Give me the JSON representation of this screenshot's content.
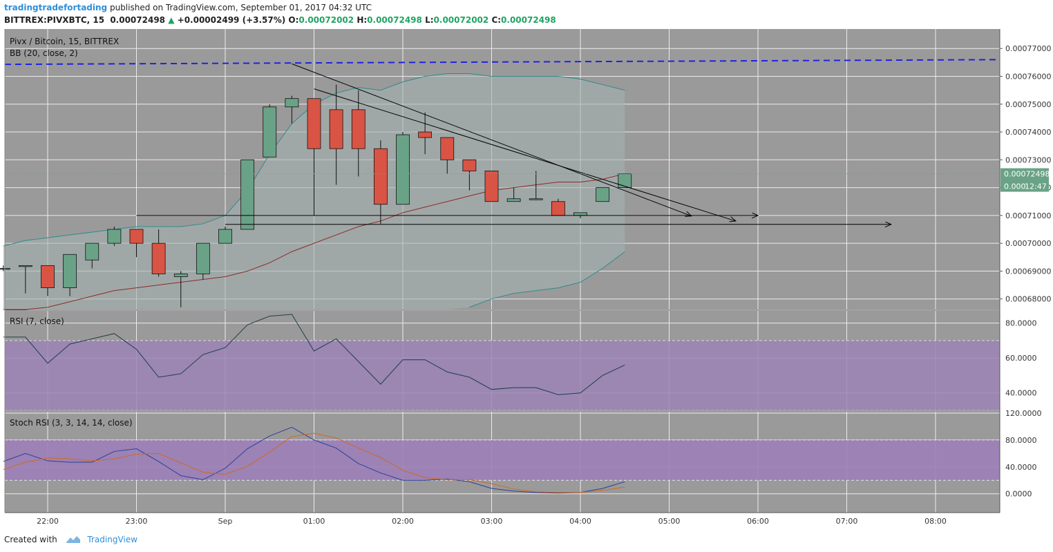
{
  "header": {
    "author": "tradingtradefortading",
    "published": "published on TradingView.com, September 01, 2017 04:32 UTC",
    "symbol": "BITTREX:PIVXBTC, 15",
    "last": "0.00072498",
    "change_arrow": "▲",
    "change": "+0.00002499 (+3.57%)",
    "o_label": "O:",
    "o": "0.00072002",
    "h_label": "H:",
    "h": "0.00072498",
    "l_label": "L:",
    "l": "0.00072002",
    "c_label": "C:",
    "c": "0.00072498"
  },
  "footer": {
    "created_with": "Created with",
    "brand": "TradingView"
  },
  "colors": {
    "bull": "#6aa287",
    "bear": "#d95444",
    "bg": "#9a9a9a",
    "rsi_band": "#9b84b5",
    "stoch_band": "#9c80b8",
    "blue_dash": "#1e22e0"
  },
  "chart_data": [
    {
      "type": "candlestick",
      "title": "Pivx / Bitcoin, 15, BITTREX",
      "indicator": "BB (20, close, 2)",
      "x_ticks": [
        "22:00",
        "23:00",
        "Sep",
        "01:00",
        "02:00",
        "03:00",
        "04:00",
        "05:00",
        "06:00",
        "07:00",
        "08:00"
      ],
      "y_ticks": [
        "0.00077000",
        "0.00076000",
        "0.00075000",
        "0.00074000",
        "0.00073000",
        "0.00072000",
        "0.00071000",
        "0.00070000",
        "0.00069000",
        "0.00068000"
      ],
      "ylim": [
        0.0006762,
        0.000777
      ],
      "price_label": "0.00072498",
      "price_partial": "0.000",
      "countdown": "12:47",
      "candles": [
        {
          "t": "21:30",
          "o": 0.000691,
          "h": 0.000692,
          "l": 0.00069,
          "c": 0.000691
        },
        {
          "t": "21:45",
          "o": 0.000692,
          "h": 0.000692,
          "l": 0.000682,
          "c": 0.000692
        },
        {
          "t": "22:00",
          "o": 0.000692,
          "h": 0.000692,
          "l": 0.000681,
          "c": 0.000684
        },
        {
          "t": "22:15",
          "o": 0.000684,
          "h": 0.000696,
          "l": 0.000681,
          "c": 0.000696
        },
        {
          "t": "22:30",
          "o": 0.000694,
          "h": 0.0007,
          "l": 0.000691,
          "c": 0.0007
        },
        {
          "t": "22:45",
          "o": 0.0007,
          "h": 0.000706,
          "l": 0.000699,
          "c": 0.000705
        },
        {
          "t": "23:00",
          "o": 0.000705,
          "h": 0.000705,
          "l": 0.000695,
          "c": 0.0007
        },
        {
          "t": "23:15",
          "o": 0.0007,
          "h": 0.000705,
          "l": 0.000688,
          "c": 0.000689
        },
        {
          "t": "23:30",
          "o": 0.000688,
          "h": 0.00069,
          "l": 0.000677,
          "c": 0.000689
        },
        {
          "t": "23:45",
          "o": 0.000689,
          "h": 0.0007,
          "l": 0.000687,
          "c": 0.0007
        },
        {
          "t": "00:00",
          "o": 0.0007,
          "h": 0.000706,
          "l": 0.0007,
          "c": 0.000705
        },
        {
          "t": "00:15",
          "o": 0.000705,
          "h": 0.00073,
          "l": 0.000705,
          "c": 0.00073
        },
        {
          "t": "00:30",
          "o": 0.000731,
          "h": 0.00075,
          "l": 0.000731,
          "c": 0.000749
        },
        {
          "t": "00:45",
          "o": 0.000749,
          "h": 0.000753,
          "l": 0.000743,
          "c": 0.000752
        },
        {
          "t": "01:00",
          "o": 0.000752,
          "h": 0.000752,
          "l": 0.00071,
          "c": 0.000734
        },
        {
          "t": "01:15",
          "o": 0.000748,
          "h": 0.000757,
          "l": 0.000721,
          "c": 0.000734
        },
        {
          "t": "01:30",
          "o": 0.000748,
          "h": 0.000755,
          "l": 0.000724,
          "c": 0.000734
        },
        {
          "t": "01:45",
          "o": 0.000734,
          "h": 0.000737,
          "l": 0.000707,
          "c": 0.000714
        },
        {
          "t": "02:00",
          "o": 0.000714,
          "h": 0.00074,
          "l": 0.000714,
          "c": 0.000739
        },
        {
          "t": "02:15",
          "o": 0.00074,
          "h": 0.000747,
          "l": 0.000732,
          "c": 0.000738
        },
        {
          "t": "02:30",
          "o": 0.000738,
          "h": 0.000738,
          "l": 0.000725,
          "c": 0.00073
        },
        {
          "t": "02:45",
          "o": 0.00073,
          "h": 0.00073,
          "l": 0.000719,
          "c": 0.000726
        },
        {
          "t": "03:00",
          "o": 0.000726,
          "h": 0.000726,
          "l": 0.000715,
          "c": 0.000715
        },
        {
          "t": "03:15",
          "o": 0.000715,
          "h": 0.00072,
          "l": 0.000715,
          "c": 0.000716
        },
        {
          "t": "03:30",
          "o": 0.000716,
          "h": 0.000726,
          "l": 0.000716,
          "c": 0.000716
        },
        {
          "t": "03:45",
          "o": 0.000715,
          "h": 0.000716,
          "l": 0.00071,
          "c": 0.00071
        },
        {
          "t": "04:00",
          "o": 0.00071,
          "h": 0.000711,
          "l": 0.000709,
          "c": 0.000711
        },
        {
          "t": "04:15",
          "o": 0.000715,
          "h": 0.00072,
          "l": 0.000715,
          "c": 0.00072
        },
        {
          "t": "04:30",
          "o": 0.00072,
          "h": 0.000725,
          "l": 0.00072,
          "c": 0.000725
        }
      ],
      "bb_upper": [
        0.000699,
        0.000701,
        0.000702,
        0.000703,
        0.000704,
        0.000705,
        0.000706,
        0.000706,
        0.000706,
        0.000707,
        0.00071,
        0.000719,
        0.000732,
        0.000743,
        0.00075,
        0.000754,
        0.000756,
        0.000755,
        0.000758,
        0.00076,
        0.000761,
        0.000761,
        0.00076,
        0.00076,
        0.00076,
        0.00076,
        0.000759,
        0.000757,
        0.000755
      ],
      "bb_middle": [
        0.000673,
        0.000675,
        0.000677,
        0.000679,
        0.000681,
        0.000683,
        0.000684,
        0.000685,
        0.000686,
        0.000687,
        0.000688,
        0.00069,
        0.000693,
        0.000697,
        0.0007,
        0.000703,
        0.000706,
        0.000708,
        0.000711,
        0.000713,
        0.000715,
        0.000717,
        0.000719,
        0.00072,
        0.000721,
        0.000722,
        0.000722,
        0.000723,
        0.000725
      ],
      "bb_lower": [
        null,
        null,
        null,
        null,
        null,
        null,
        null,
        null,
        null,
        null,
        null,
        null,
        null,
        null,
        null,
        null,
        null,
        null,
        null,
        null,
        null,
        0.000677,
        0.00068,
        0.000682,
        0.000683,
        0.000684,
        0.000686,
        0.000691,
        0.000697
      ],
      "resistance_level": [
        0.0007643,
        0.000766
      ],
      "drawings": [
        {
          "from": [
            "00:45",
            0.0007645
          ],
          "to": [
            "05:15",
            0.0007098
          ],
          "arrow": true
        },
        {
          "from": [
            "01:00",
            0.0007555
          ],
          "to": [
            "05:45",
            0.000708
          ],
          "arrow": true
        },
        {
          "from": [
            "23:00",
            0.00071
          ],
          "to": [
            "06:00",
            0.00071
          ],
          "arrow": true
        },
        {
          "from": [
            "00:00",
            0.0007068
          ],
          "to": [
            "07:30",
            0.0007068
          ],
          "arrow": true
        }
      ]
    },
    {
      "type": "line",
      "title": "RSI (7, close)",
      "y_ticks": [
        "80.0000",
        "60.0000",
        "40.0000"
      ],
      "ylim": [
        30,
        87
      ],
      "band": [
        30,
        70
      ],
      "values": [
        72,
        72,
        57,
        68,
        71,
        74,
        65,
        49,
        51,
        62,
        66,
        79,
        84,
        85,
        64,
        71,
        58,
        45,
        59,
        59,
        52,
        49,
        42,
        43,
        43,
        39,
        40,
        50,
        56
      ]
    },
    {
      "type": "line",
      "title": "Stoch RSI (3, 3, 14, 14, close)",
      "y_ticks": [
        "120.0000",
        "80.0000",
        "40.0000",
        "0.0000"
      ],
      "ylim": [
        -28,
        122
      ],
      "band": [
        20,
        80
      ],
      "series": [
        {
          "values": [
            48,
            60,
            49,
            47,
            47,
            63,
            67,
            48,
            27,
            21,
            38,
            67,
            86,
            99,
            80,
            68,
            45,
            31,
            20,
            20,
            22,
            18,
            8,
            4,
            2,
            1,
            2,
            8,
            18
          ]
        },
        {
          "values": [
            36,
            47,
            53,
            52,
            49,
            52,
            59,
            60,
            46,
            32,
            29,
            41,
            62,
            85,
            90,
            83,
            68,
            54,
            35,
            24,
            21,
            21,
            15,
            7,
            3,
            2,
            2,
            5,
            10
          ]
        }
      ]
    }
  ]
}
